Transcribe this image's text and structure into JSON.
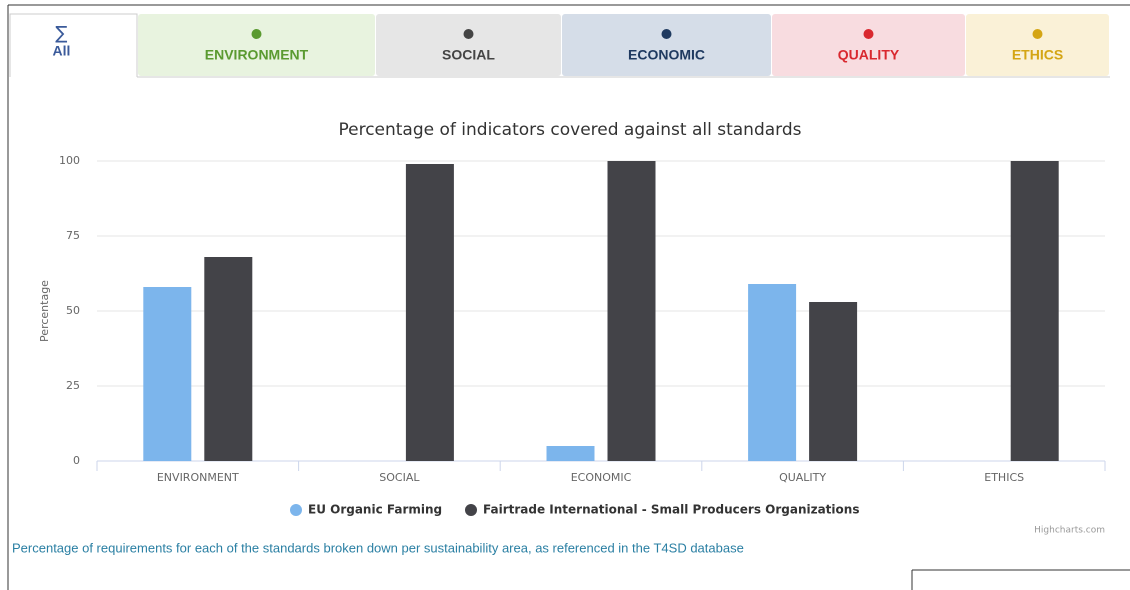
{
  "tabs": [
    {
      "symbol": "∑",
      "label": "All"
    },
    {
      "label": "ENVIRONMENT"
    },
    {
      "label": "SOCIAL"
    },
    {
      "label": "ECONOMIC"
    },
    {
      "label": "QUALITY"
    },
    {
      "label": "ETHICS"
    }
  ],
  "chart_data": {
    "type": "bar",
    "title": "Percentage of indicators covered against all standards",
    "y_axis_label": "Percentage",
    "categories": [
      "ENVIRONMENT",
      "SOCIAL",
      "ECONOMIC",
      "QUALITY",
      "ETHICS"
    ],
    "series": [
      {
        "name": "EU Organic Farming",
        "color": "#7cb5ec",
        "values": [
          58,
          0,
          5,
          59,
          0
        ]
      },
      {
        "name": "Fairtrade International - Small Producers Organizations",
        "color": "#434348",
        "values": [
          68,
          99,
          100,
          53,
          100
        ]
      }
    ],
    "ylim": [
      0,
      100
    ],
    "yticks": [
      0,
      25,
      50,
      75,
      100
    ],
    "grid": true,
    "legend": "bottom",
    "credits": "Highcharts.com"
  },
  "caption": "Percentage of requirements for each of the standards broken down per sustainability area, as referenced in the T4SD database"
}
